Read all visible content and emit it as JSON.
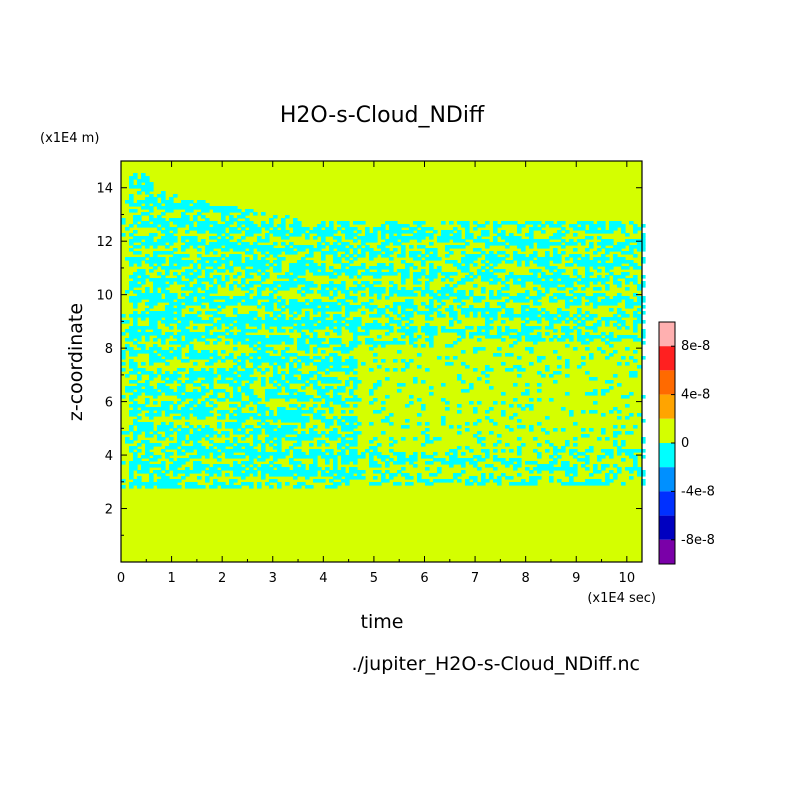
{
  "chart_data": {
    "type": "heatmap",
    "title": "H2O-s-Cloud_NDiff",
    "xlabel": "time",
    "ylabel": "z-coordinate",
    "x_unit": "(x1E4 sec)",
    "y_unit": "(x1E4 m)",
    "xlim": [
      0,
      10.3
    ],
    "ylim": [
      0,
      15
    ],
    "x_ticks": [
      "0",
      "1",
      "2",
      "3",
      "4",
      "5",
      "6",
      "7",
      "8",
      "9",
      "10"
    ],
    "y_ticks": [
      "2",
      "4",
      "6",
      "8",
      "10",
      "12",
      "14"
    ],
    "footer": "./jupiter_H2O-s-Cloud_NDiff.nc",
    "colorbar": {
      "labels": [
        "8e-8",
        "4e-8",
        "0",
        "-4e-8",
        "-8e-8"
      ],
      "levels": [
        {
          "color": "#ffb0b0"
        },
        {
          "color": "#ff2020"
        },
        {
          "color": "#ff6a00"
        },
        {
          "color": "#ffa400"
        },
        {
          "color": "#d4ff00"
        },
        {
          "color": "#00ffff"
        },
        {
          "color": "#0090ff"
        },
        {
          "color": "#0030ff"
        },
        {
          "color": "#0000c0"
        },
        {
          "color": "#7a00a8"
        }
      ]
    },
    "field_colors": {
      "zero": "#d4ff00",
      "negative_small": "#00ffff"
    }
  }
}
